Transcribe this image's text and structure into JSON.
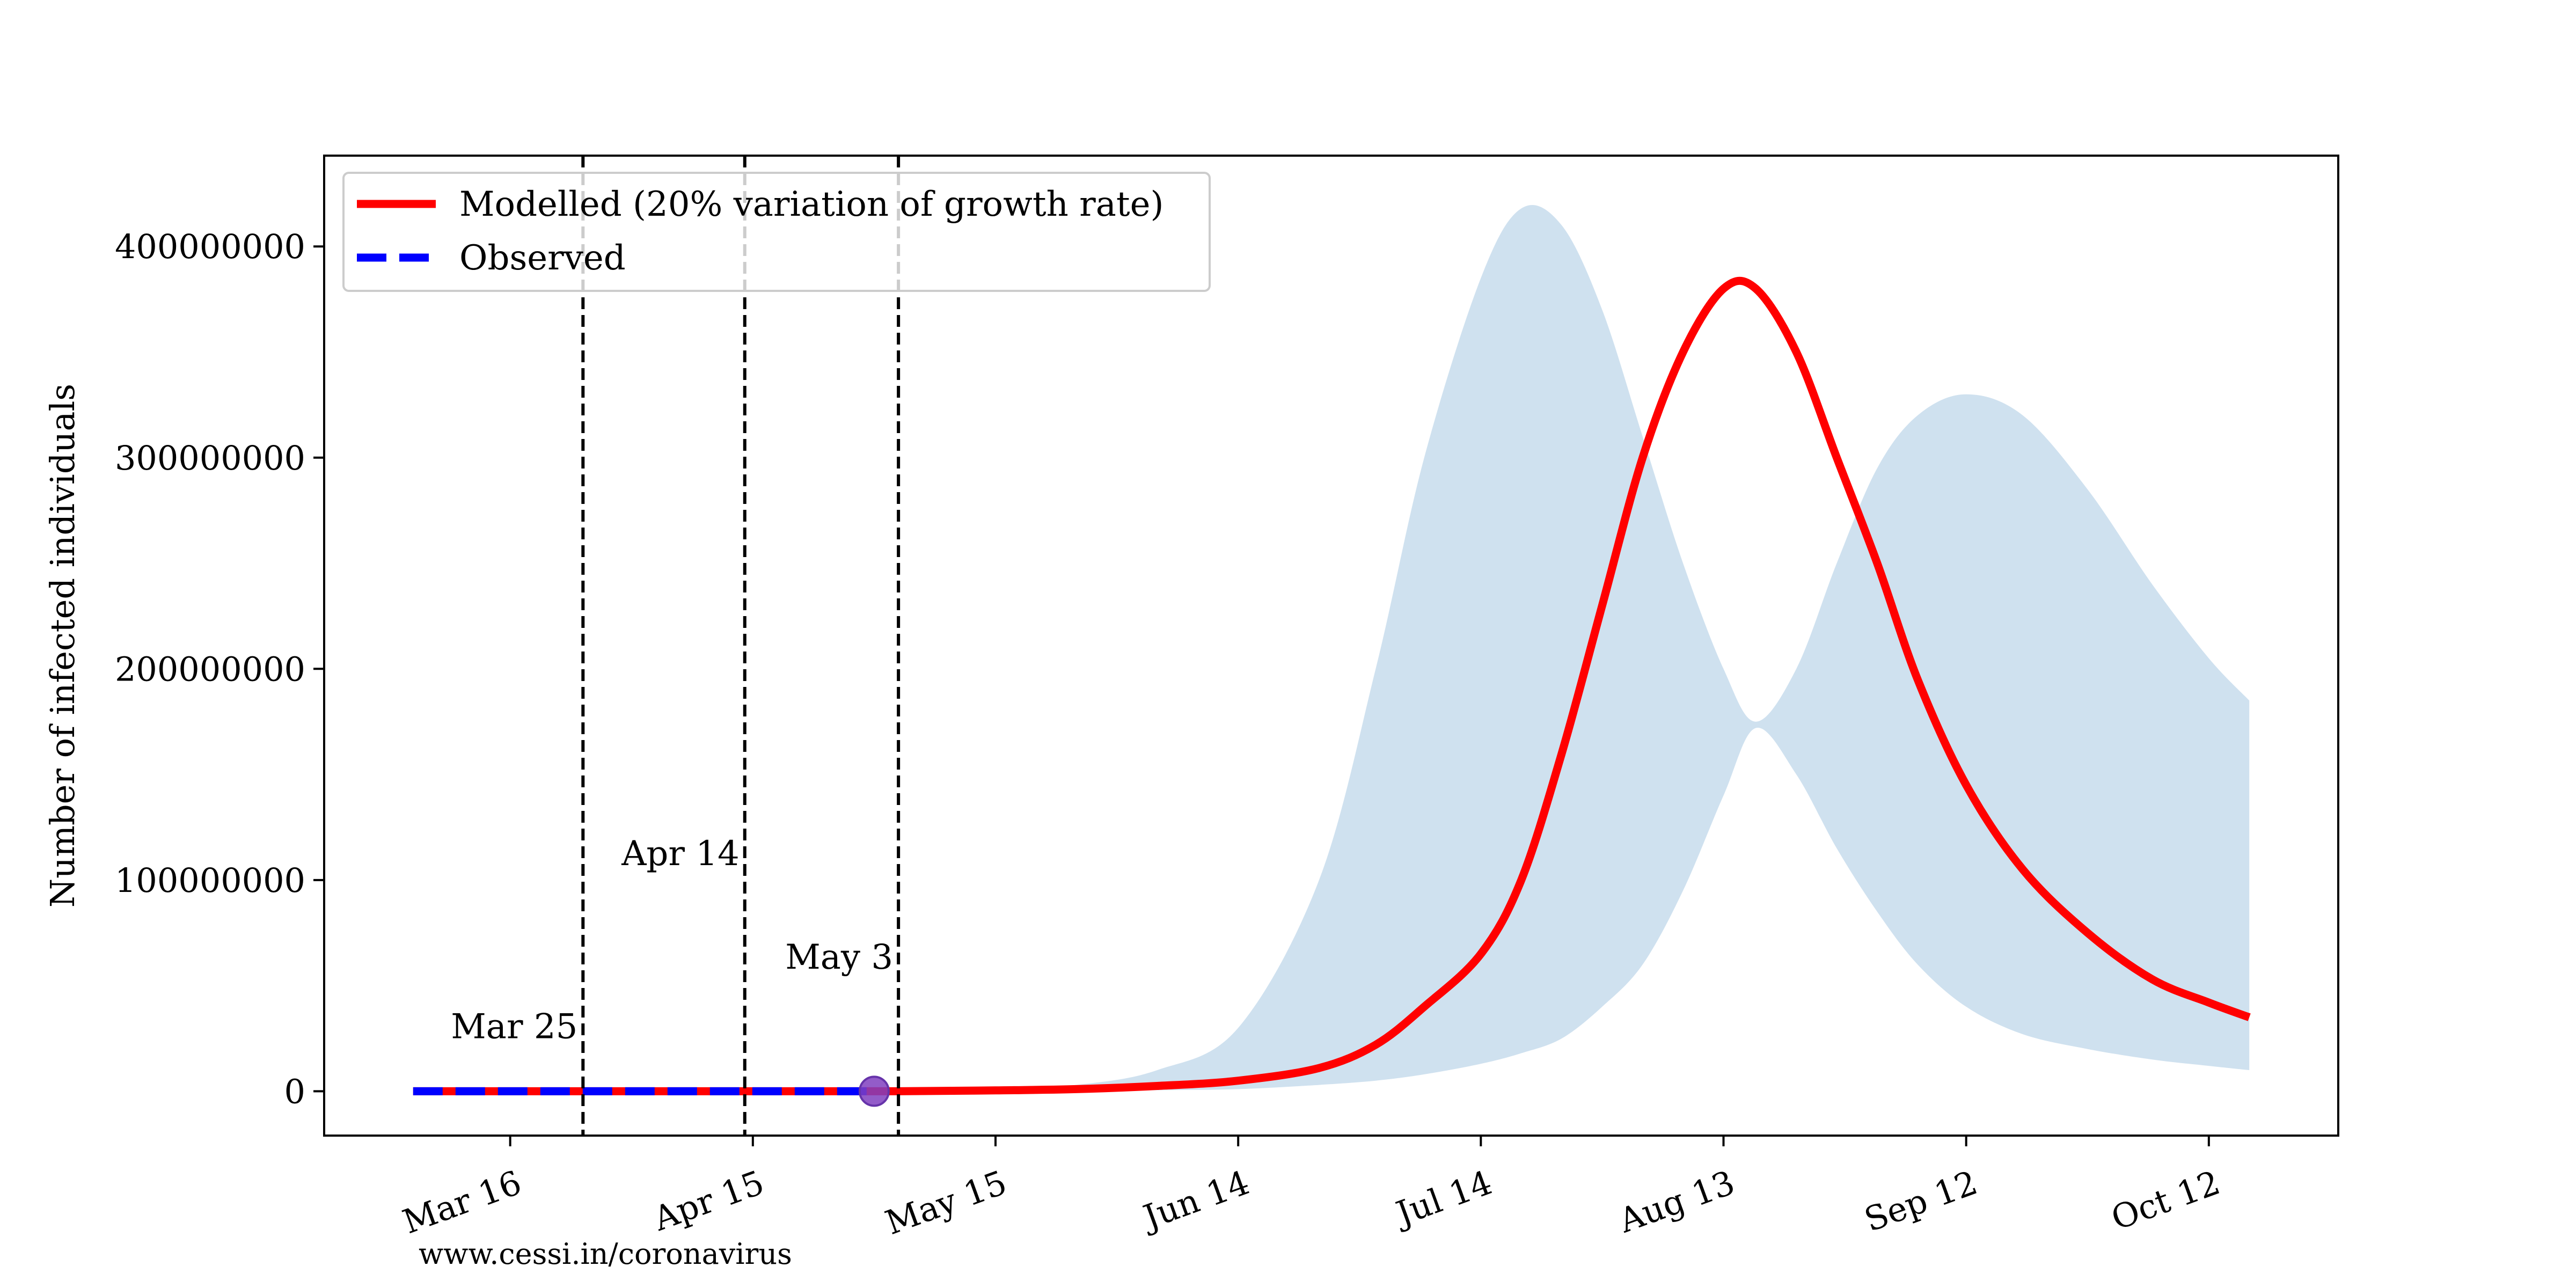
{
  "chart_data": {
    "type": "line",
    "title": "",
    "xlabel": "",
    "ylabel": "Number of infected individuals",
    "x_ticks": [
      "Mar 16",
      "Apr 15",
      "May 15",
      "Jun 14",
      "Jul 14",
      "Aug 13",
      "Sep 12",
      "Oct 12"
    ],
    "y_ticks": [
      "0",
      "100000000",
      "200000000",
      "300000000",
      "400000000"
    ],
    "ylim": [
      -21000000,
      443000000
    ],
    "xlim": [
      "2020-02-22",
      "2020-10-28"
    ],
    "grid": false,
    "legend": {
      "placement": "top-left",
      "entries": [
        "Modelled (20% variation of growth rate)",
        "Observed"
      ]
    },
    "annotations": [
      {
        "date": "2020-03-25",
        "label": "Mar 25",
        "y": 20000000
      },
      {
        "date": "2020-04-14",
        "label": "Apr 14",
        "y": 102000000
      },
      {
        "date": "2020-05-03",
        "label": "May 3",
        "y": 53000000
      }
    ],
    "observed_end": {
      "date": "2020-04-30",
      "value": 0
    },
    "series": [
      {
        "name": "Modelled (20% variation of growth rate)",
        "color": "#ff0000",
        "style": "solid",
        "x": [
          "2020-03-04",
          "2020-03-25",
          "2020-04-14",
          "2020-05-03",
          "2020-05-15",
          "2020-05-25",
          "2020-06-04",
          "2020-06-14",
          "2020-06-24",
          "2020-07-01",
          "2020-07-07",
          "2020-07-14",
          "2020-07-19",
          "2020-07-24",
          "2020-07-29",
          "2020-08-03",
          "2020-08-08",
          "2020-08-13",
          "2020-08-17",
          "2020-08-22",
          "2020-08-27",
          "2020-09-01",
          "2020-09-06",
          "2020-09-12",
          "2020-09-19",
          "2020-09-27",
          "2020-10-05",
          "2020-10-12",
          "2020-10-17"
        ],
        "y": [
          0,
          0,
          0,
          0,
          400000,
          1000000,
          2500000,
          5000000,
          11000000,
          22000000,
          40000000,
          65000000,
          100000000,
          160000000,
          230000000,
          300000000,
          350000000,
          380000000,
          380000000,
          350000000,
          300000000,
          250000000,
          195000000,
          145000000,
          105000000,
          75000000,
          53000000,
          42000000,
          35000000
        ]
      },
      {
        "name": "Observed",
        "color": "#0000ff",
        "style": "dashed",
        "x": [
          "2020-03-04",
          "2020-04-30"
        ],
        "y": [
          0,
          0
        ]
      }
    ],
    "band": {
      "color": "#cfe1ef",
      "x": [
        "2020-03-04",
        "2020-05-15",
        "2020-05-25",
        "2020-06-04",
        "2020-06-14",
        "2020-06-24",
        "2020-07-01",
        "2020-07-07",
        "2020-07-14",
        "2020-07-19",
        "2020-07-24",
        "2020-07-29",
        "2020-08-03",
        "2020-08-08",
        "2020-08-13",
        "2020-08-17",
        "2020-08-22",
        "2020-08-27",
        "2020-09-01",
        "2020-09-06",
        "2020-09-12",
        "2020-09-19",
        "2020-09-27",
        "2020-10-05",
        "2020-10-12",
        "2020-10-17"
      ],
      "upper": [
        0,
        1000000,
        3000000,
        10000000,
        30000000,
        100000000,
        200000000,
        300000000,
        385000000,
        418000000,
        410000000,
        370000000,
        310000000,
        250000000,
        200000000,
        175000000,
        200000000,
        250000000,
        295000000,
        320000000,
        330000000,
        320000000,
        285000000,
        240000000,
        205000000,
        185000000
      ],
      "lower": [
        0,
        0,
        0,
        500000,
        1000000,
        3000000,
        5000000,
        8000000,
        13000000,
        18000000,
        25000000,
        40000000,
        60000000,
        95000000,
        140000000,
        172000000,
        150000000,
        115000000,
        85000000,
        60000000,
        40000000,
        27000000,
        20000000,
        15000000,
        12000000,
        10000000
      ]
    }
  },
  "footer": {
    "url": "www.cessi.in/coronavirus"
  }
}
